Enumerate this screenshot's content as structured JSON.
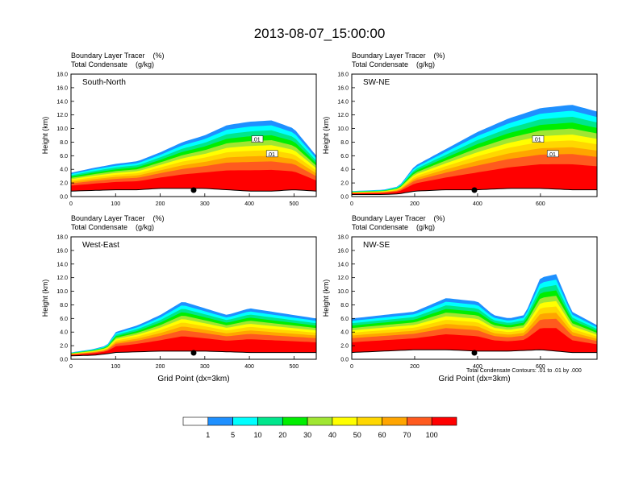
{
  "title": "2013-08-07_15:00:00",
  "panel_header": {
    "line1": "Boundary Layer Tracer    (%)",
    "line2": "Total Condensate    (g/kg)"
  },
  "colors": {
    "levels": [
      "#ffffff",
      "#1e90ff",
      "#00ffff",
      "#00e68c",
      "#00ee00",
      "#a0e632",
      "#ffff00",
      "#ffd700",
      "#ffa500",
      "#ff5a1e",
      "#ff0000"
    ],
    "contour": "#000000",
    "marker": "#000000"
  },
  "colorbar": {
    "labels": [
      "1",
      "5",
      "10",
      "20",
      "30",
      "40",
      "50",
      "60",
      "70",
      "100"
    ]
  },
  "xlabel": "Grid Point (dx=3km)",
  "ylabel": "Height (km)",
  "contour_note": "Total Condensate Contours: .01 to .01 by .000",
  "chart_data": [
    {
      "type": "heatmap",
      "panel_label": "South-North",
      "xlim": [
        0,
        550
      ],
      "xticks": [
        "0",
        "100",
        "200",
        "300",
        "400",
        "500"
      ],
      "ylim": [
        0,
        18
      ],
      "yticks": [
        "0.0",
        "2.0",
        "4.0",
        "6.0",
        "8.0",
        "10.0",
        "12.0",
        "14.0",
        "16.0",
        "18.0"
      ],
      "marker_x": 275,
      "contour_labels": [
        ".01",
        ".01"
      ],
      "terrain": [
        [
          0,
          0.8
        ],
        [
          50,
          0.9
        ],
        [
          100,
          1.0
        ],
        [
          150,
          1.0
        ],
        [
          200,
          1.2
        ],
        [
          250,
          1.2
        ],
        [
          300,
          1.2
        ],
        [
          350,
          1.0
        ],
        [
          400,
          0.8
        ],
        [
          450,
          0.8
        ],
        [
          500,
          1.0
        ],
        [
          550,
          0.8
        ]
      ],
      "tracer_top": [
        [
          0,
          3.5
        ],
        [
          50,
          4.2
        ],
        [
          100,
          4.8
        ],
        [
          150,
          5.2
        ],
        [
          200,
          6.5
        ],
        [
          250,
          8.0
        ],
        [
          300,
          9.0
        ],
        [
          350,
          10.5
        ],
        [
          400,
          11.0
        ],
        [
          450,
          11.2
        ],
        [
          500,
          10.0
        ],
        [
          550,
          6.0
        ]
      ]
    },
    {
      "type": "heatmap",
      "panel_label": "SW-NE",
      "xlim": [
        0,
        780
      ],
      "xticks": [
        "0",
        "200",
        "400",
        "600"
      ],
      "ylim": [
        0,
        18
      ],
      "yticks": [
        "0.0",
        "2.0",
        "4.0",
        "6.0",
        "8.0",
        "10.0",
        "12.0",
        "14.0",
        "16.0",
        "18.0"
      ],
      "marker_x": 390,
      "contour_labels": [
        ".01",
        ".01"
      ],
      "terrain": [
        [
          0,
          0.3
        ],
        [
          100,
          0.3
        ],
        [
          150,
          0.4
        ],
        [
          200,
          0.8
        ],
        [
          300,
          1.0
        ],
        [
          400,
          1.0
        ],
        [
          500,
          1.2
        ],
        [
          600,
          1.2
        ],
        [
          700,
          1.0
        ],
        [
          780,
          1.0
        ]
      ],
      "tracer_top": [
        [
          0,
          0.8
        ],
        [
          100,
          1.0
        ],
        [
          150,
          1.5
        ],
        [
          200,
          4.5
        ],
        [
          300,
          7.0
        ],
        [
          400,
          9.5
        ],
        [
          500,
          11.5
        ],
        [
          600,
          13.0
        ],
        [
          700,
          13.5
        ],
        [
          780,
          12.5
        ]
      ]
    },
    {
      "type": "heatmap",
      "panel_label": "West-East",
      "xlim": [
        0,
        550
      ],
      "xticks": [
        "0",
        "100",
        "200",
        "300",
        "400",
        "500"
      ],
      "ylim": [
        0,
        18
      ],
      "yticks": [
        "0.0",
        "2.0",
        "4.0",
        "6.0",
        "8.0",
        "10.0",
        "12.0",
        "14.0",
        "16.0",
        "18.0"
      ],
      "marker_x": 275,
      "contour_labels": [],
      "terrain": [
        [
          0,
          0.5
        ],
        [
          50,
          0.6
        ],
        [
          80,
          0.8
        ],
        [
          100,
          1.0
        ],
        [
          200,
          1.2
        ],
        [
          300,
          1.2
        ],
        [
          400,
          1.0
        ],
        [
          500,
          1.0
        ],
        [
          550,
          1.0
        ]
      ],
      "tracer_top": [
        [
          0,
          1.0
        ],
        [
          50,
          1.5
        ],
        [
          80,
          2.0
        ],
        [
          100,
          4.0
        ],
        [
          150,
          5.0
        ],
        [
          200,
          6.5
        ],
        [
          250,
          8.5
        ],
        [
          300,
          7.5
        ],
        [
          350,
          6.5
        ],
        [
          400,
          7.5
        ],
        [
          450,
          7.0
        ],
        [
          500,
          6.5
        ],
        [
          550,
          6.0
        ]
      ]
    },
    {
      "type": "heatmap",
      "panel_label": "NW-SE",
      "xlim": [
        0,
        780
      ],
      "xticks": [
        "0",
        "200",
        "400",
        "600"
      ],
      "ylim": [
        0,
        18
      ],
      "yticks": [
        "0.0",
        "2.0",
        "4.0",
        "6.0",
        "8.0",
        "10.0",
        "12.0",
        "14.0",
        "16.0",
        "18.0"
      ],
      "marker_x": 390,
      "contour_labels": [],
      "terrain": [
        [
          0,
          1.0
        ],
        [
          100,
          1.2
        ],
        [
          200,
          1.4
        ],
        [
          300,
          1.4
        ],
        [
          400,
          1.2
        ],
        [
          500,
          1.2
        ],
        [
          600,
          1.4
        ],
        [
          700,
          1.0
        ],
        [
          780,
          1.0
        ]
      ],
      "tracer_top": [
        [
          0,
          6.0
        ],
        [
          100,
          6.5
        ],
        [
          200,
          7.0
        ],
        [
          300,
          9.0
        ],
        [
          400,
          8.5
        ],
        [
          450,
          6.5
        ],
        [
          500,
          6.0
        ],
        [
          550,
          6.5
        ],
        [
          600,
          12.0
        ],
        [
          650,
          12.5
        ],
        [
          700,
          7.0
        ],
        [
          780,
          5.0
        ]
      ]
    }
  ]
}
